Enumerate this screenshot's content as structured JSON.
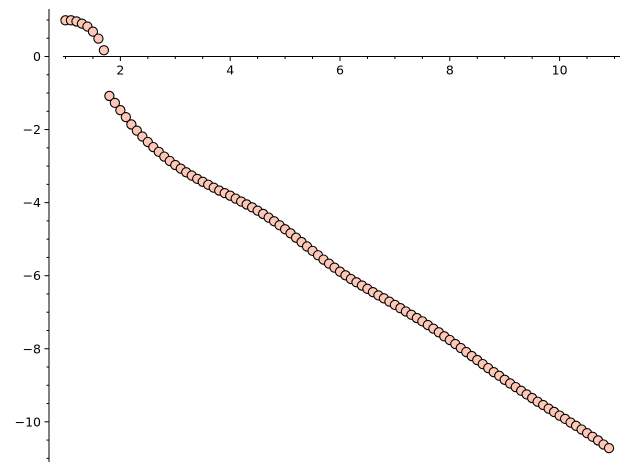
{
  "chart_data": {
    "type": "scatter",
    "title": "",
    "xlabel": "",
    "ylabel": "",
    "xlim": [
      0.7,
      11.1
    ],
    "ylim": [
      -11.1,
      1.3
    ],
    "x_ticks": [
      2,
      4,
      6,
      8,
      10
    ],
    "x_tick_labels": [
      "2",
      "4",
      "6",
      "8",
      "10"
    ],
    "y_ticks": [
      0,
      -2,
      -4,
      -6,
      -8,
      -10
    ],
    "y_tick_labels": [
      "0",
      "−2",
      "−4",
      "−6",
      "−8",
      "−10"
    ],
    "x_minor_step": 0.5,
    "y_minor_step": 0.5,
    "grid": false,
    "marker_fill": "#ffc8b6",
    "marker_edge": "#000000",
    "points": [
      [
        1.0,
        0.99
      ],
      [
        1.1,
        0.99
      ],
      [
        1.2,
        0.96
      ],
      [
        1.3,
        0.9
      ],
      [
        1.4,
        0.82
      ],
      [
        1.5,
        0.68
      ],
      [
        1.6,
        0.49
      ],
      [
        1.7,
        0.17
      ],
      [
        1.8,
        -1.08
      ],
      [
        1.9,
        -1.27
      ],
      [
        2.0,
        -1.47
      ],
      [
        2.1,
        -1.66
      ],
      [
        2.2,
        -1.86
      ],
      [
        2.3,
        -2.03
      ],
      [
        2.4,
        -2.19
      ],
      [
        2.5,
        -2.34
      ],
      [
        2.6,
        -2.48
      ],
      [
        2.7,
        -2.61
      ],
      [
        2.8,
        -2.74
      ],
      [
        2.9,
        -2.86
      ],
      [
        3.0,
        -2.97
      ],
      [
        3.1,
        -3.07
      ],
      [
        3.2,
        -3.17
      ],
      [
        3.3,
        -3.26
      ],
      [
        3.4,
        -3.35
      ],
      [
        3.5,
        -3.43
      ],
      [
        3.6,
        -3.51
      ],
      [
        3.7,
        -3.59
      ],
      [
        3.8,
        -3.67
      ],
      [
        3.9,
        -3.74
      ],
      [
        4.0,
        -3.81
      ],
      [
        4.1,
        -3.89
      ],
      [
        4.2,
        -3.97
      ],
      [
        4.3,
        -4.05
      ],
      [
        4.4,
        -4.13
      ],
      [
        4.5,
        -4.22
      ],
      [
        4.6,
        -4.31
      ],
      [
        4.7,
        -4.41
      ],
      [
        4.8,
        -4.51
      ],
      [
        4.9,
        -4.62
      ],
      [
        5.0,
        -4.73
      ],
      [
        5.1,
        -4.84
      ],
      [
        5.2,
        -4.96
      ],
      [
        5.3,
        -5.08
      ],
      [
        5.4,
        -5.2
      ],
      [
        5.5,
        -5.32
      ],
      [
        5.6,
        -5.44
      ],
      [
        5.7,
        -5.56
      ],
      [
        5.8,
        -5.67
      ],
      [
        5.9,
        -5.78
      ],
      [
        6.0,
        -5.89
      ],
      [
        6.1,
        -5.99
      ],
      [
        6.2,
        -6.09
      ],
      [
        6.3,
        -6.18
      ],
      [
        6.4,
        -6.27
      ],
      [
        6.5,
        -6.36
      ],
      [
        6.6,
        -6.45
      ],
      [
        6.7,
        -6.54
      ],
      [
        6.8,
        -6.62
      ],
      [
        6.9,
        -6.71
      ],
      [
        7.0,
        -6.8
      ],
      [
        7.1,
        -6.89
      ],
      [
        7.2,
        -6.98
      ],
      [
        7.3,
        -7.07
      ],
      [
        7.4,
        -7.16
      ],
      [
        7.5,
        -7.25
      ],
      [
        7.6,
        -7.35
      ],
      [
        7.7,
        -7.45
      ],
      [
        7.8,
        -7.55
      ],
      [
        7.9,
        -7.66
      ],
      [
        8.0,
        -7.76
      ],
      [
        8.1,
        -7.87
      ],
      [
        8.2,
        -7.98
      ],
      [
        8.3,
        -8.09
      ],
      [
        8.4,
        -8.2
      ],
      [
        8.5,
        -8.31
      ],
      [
        8.6,
        -8.42
      ],
      [
        8.7,
        -8.53
      ],
      [
        8.8,
        -8.64
      ],
      [
        8.9,
        -8.74
      ],
      [
        9.0,
        -8.85
      ],
      [
        9.1,
        -8.95
      ],
      [
        9.2,
        -9.05
      ],
      [
        9.3,
        -9.15
      ],
      [
        9.4,
        -9.25
      ],
      [
        9.5,
        -9.35
      ],
      [
        9.6,
        -9.45
      ],
      [
        9.7,
        -9.54
      ],
      [
        9.8,
        -9.64
      ],
      [
        9.9,
        -9.73
      ],
      [
        10.0,
        -9.83
      ],
      [
        10.1,
        -9.92
      ],
      [
        10.2,
        -10.02
      ],
      [
        10.3,
        -10.11
      ],
      [
        10.4,
        -10.21
      ],
      [
        10.5,
        -10.31
      ],
      [
        10.6,
        -10.41
      ],
      [
        10.7,
        -10.51
      ],
      [
        10.8,
        -10.62
      ],
      [
        10.9,
        -10.72
      ]
    ]
  }
}
